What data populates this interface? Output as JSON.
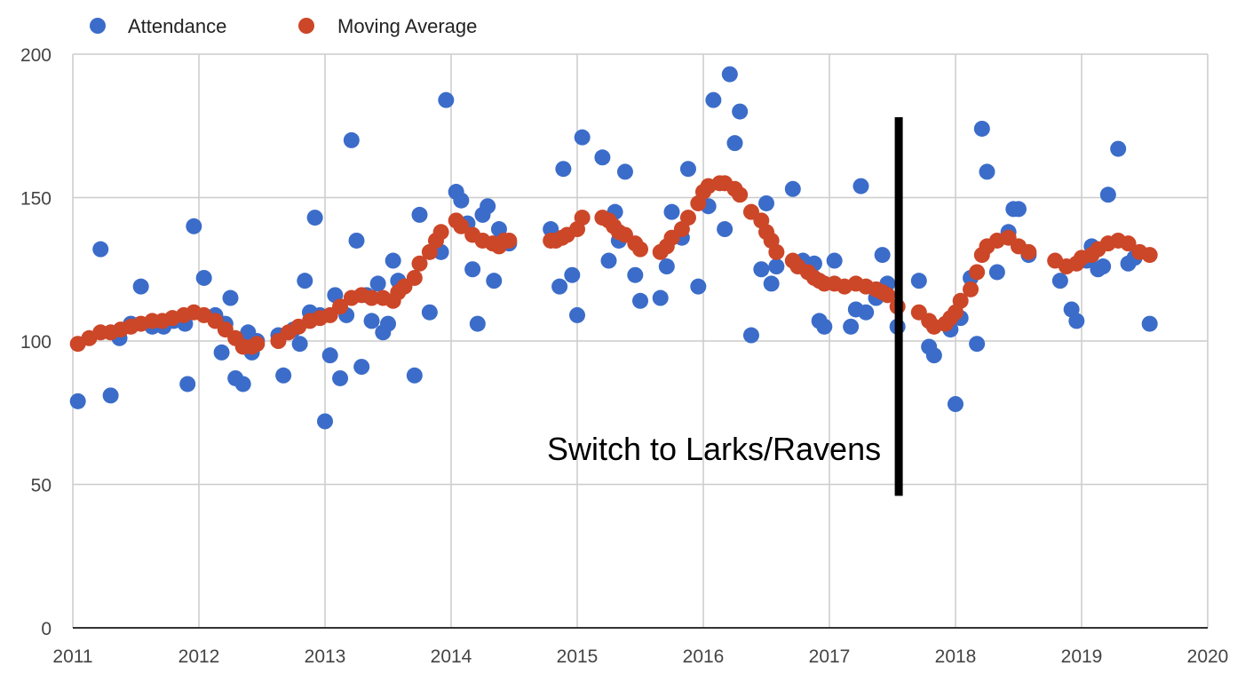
{
  "chart_data": {
    "type": "scatter",
    "title": "",
    "xlabel": "",
    "ylabel": "",
    "xlim": [
      2011,
      2020
    ],
    "ylim": [
      0,
      200
    ],
    "x_ticks": [
      "2011",
      "2012",
      "2013",
      "2014",
      "2015",
      "2016",
      "2017",
      "2018",
      "2019",
      "2020"
    ],
    "y_ticks": [
      "0",
      "50",
      "100",
      "150",
      "200"
    ],
    "grid": true,
    "legend_position": "top-left",
    "series": [
      {
        "name": "Attendance",
        "color": "#3b6cc9",
        "points": [
          [
            2011.04,
            79
          ],
          [
            2011.22,
            132
          ],
          [
            2011.3,
            81
          ],
          [
            2011.37,
            101
          ],
          [
            2011.46,
            106
          ],
          [
            2011.54,
            119
          ],
          [
            2011.63,
            105
          ],
          [
            2011.72,
            105
          ],
          [
            2011.8,
            107
          ],
          [
            2011.89,
            106
          ],
          [
            2011.91,
            85
          ],
          [
            2011.96,
            140
          ],
          [
            2012.04,
            122
          ],
          [
            2012.13,
            109
          ],
          [
            2012.18,
            96
          ],
          [
            2012.21,
            106
          ],
          [
            2012.25,
            115
          ],
          [
            2012.29,
            87
          ],
          [
            2012.35,
            85
          ],
          [
            2012.39,
            103
          ],
          [
            2012.42,
            96
          ],
          [
            2012.46,
            100
          ],
          [
            2012.63,
            102
          ],
          [
            2012.67,
            88
          ],
          [
            2012.75,
            104
          ],
          [
            2012.8,
            99
          ],
          [
            2012.84,
            121
          ],
          [
            2012.88,
            110
          ],
          [
            2012.92,
            143
          ],
          [
            2012.96,
            109
          ],
          [
            2013.0,
            72
          ],
          [
            2013.04,
            95
          ],
          [
            2013.08,
            116
          ],
          [
            2013.12,
            87
          ],
          [
            2013.17,
            109
          ],
          [
            2013.21,
            170
          ],
          [
            2013.25,
            135
          ],
          [
            2013.29,
            91
          ],
          [
            2013.33,
            116
          ],
          [
            2013.37,
            107
          ],
          [
            2013.42,
            120
          ],
          [
            2013.46,
            103
          ],
          [
            2013.5,
            106
          ],
          [
            2013.54,
            128
          ],
          [
            2013.58,
            121
          ],
          [
            2013.71,
            88
          ],
          [
            2013.75,
            144
          ],
          [
            2013.83,
            110
          ],
          [
            2013.92,
            131
          ],
          [
            2013.96,
            184
          ],
          [
            2014.04,
            152
          ],
          [
            2014.08,
            149
          ],
          [
            2014.13,
            141
          ],
          [
            2014.17,
            125
          ],
          [
            2014.21,
            106
          ],
          [
            2014.25,
            144
          ],
          [
            2014.29,
            147
          ],
          [
            2014.34,
            121
          ],
          [
            2014.38,
            139
          ],
          [
            2014.46,
            134
          ],
          [
            2014.79,
            139
          ],
          [
            2014.86,
            119
          ],
          [
            2014.89,
            160
          ],
          [
            2014.96,
            123
          ],
          [
            2015.0,
            109
          ],
          [
            2015.04,
            171
          ],
          [
            2015.2,
            164
          ],
          [
            2015.25,
            128
          ],
          [
            2015.3,
            145
          ],
          [
            2015.33,
            135
          ],
          [
            2015.38,
            159
          ],
          [
            2015.46,
            123
          ],
          [
            2015.5,
            114
          ],
          [
            2015.66,
            115
          ],
          [
            2015.71,
            126
          ],
          [
            2015.75,
            145
          ],
          [
            2015.83,
            136
          ],
          [
            2015.88,
            160
          ],
          [
            2015.96,
            119
          ],
          [
            2016.04,
            147
          ],
          [
            2016.08,
            184
          ],
          [
            2016.17,
            139
          ],
          [
            2016.21,
            193
          ],
          [
            2016.25,
            169
          ],
          [
            2016.29,
            180
          ],
          [
            2016.38,
            102
          ],
          [
            2016.46,
            125
          ],
          [
            2016.5,
            148
          ],
          [
            2016.54,
            120
          ],
          [
            2016.58,
            126
          ],
          [
            2016.71,
            153
          ],
          [
            2016.79,
            128
          ],
          [
            2016.88,
            127
          ],
          [
            2016.92,
            107
          ],
          [
            2016.96,
            105
          ],
          [
            2017.04,
            128
          ],
          [
            2017.17,
            105
          ],
          [
            2017.21,
            111
          ],
          [
            2017.25,
            154
          ],
          [
            2017.29,
            110
          ],
          [
            2017.37,
            115
          ],
          [
            2017.42,
            130
          ],
          [
            2017.46,
            120
          ],
          [
            2017.54,
            105
          ],
          [
            2017.71,
            121
          ],
          [
            2017.79,
            98
          ],
          [
            2017.83,
            95
          ],
          [
            2017.92,
            106
          ],
          [
            2017.96,
            104
          ],
          [
            2018.0,
            78
          ],
          [
            2018.04,
            108
          ],
          [
            2018.12,
            122
          ],
          [
            2018.17,
            99
          ],
          [
            2018.21,
            174
          ],
          [
            2018.25,
            159
          ],
          [
            2018.33,
            124
          ],
          [
            2018.42,
            138
          ],
          [
            2018.46,
            146
          ],
          [
            2018.5,
            146
          ],
          [
            2018.58,
            130
          ],
          [
            2018.83,
            121
          ],
          [
            2018.92,
            111
          ],
          [
            2018.96,
            107
          ],
          [
            2019.04,
            128
          ],
          [
            2019.08,
            133
          ],
          [
            2019.13,
            125
          ],
          [
            2019.17,
            126
          ],
          [
            2019.21,
            151
          ],
          [
            2019.29,
            167
          ],
          [
            2019.37,
            127
          ],
          [
            2019.42,
            129
          ],
          [
            2019.54,
            106
          ]
        ]
      },
      {
        "name": "Moving Average",
        "color": "#cc4628",
        "points": [
          [
            2011.04,
            99
          ],
          [
            2011.13,
            101
          ],
          [
            2011.22,
            103
          ],
          [
            2011.3,
            103
          ],
          [
            2011.38,
            104
          ],
          [
            2011.46,
            105
          ],
          [
            2011.54,
            106
          ],
          [
            2011.63,
            107
          ],
          [
            2011.71,
            107
          ],
          [
            2011.79,
            108
          ],
          [
            2011.88,
            109
          ],
          [
            2011.96,
            110
          ],
          [
            2012.04,
            109
          ],
          [
            2012.13,
            107
          ],
          [
            2012.21,
            104
          ],
          [
            2012.29,
            101
          ],
          [
            2012.35,
            98
          ],
          [
            2012.42,
            98
          ],
          [
            2012.46,
            99
          ],
          [
            2012.63,
            100
          ],
          [
            2012.71,
            103
          ],
          [
            2012.79,
            105
          ],
          [
            2012.88,
            107
          ],
          [
            2012.96,
            108
          ],
          [
            2013.04,
            109
          ],
          [
            2013.12,
            112
          ],
          [
            2013.21,
            115
          ],
          [
            2013.29,
            116
          ],
          [
            2013.37,
            115
          ],
          [
            2013.46,
            115
          ],
          [
            2013.54,
            114
          ],
          [
            2013.58,
            117
          ],
          [
            2013.63,
            119
          ],
          [
            2013.71,
            122
          ],
          [
            2013.75,
            127
          ],
          [
            2013.83,
            131
          ],
          [
            2013.88,
            135
          ],
          [
            2013.92,
            138
          ],
          [
            2014.04,
            142
          ],
          [
            2014.08,
            140
          ],
          [
            2014.17,
            137
          ],
          [
            2014.25,
            135
          ],
          [
            2014.33,
            134
          ],
          [
            2014.38,
            133
          ],
          [
            2014.42,
            135
          ],
          [
            2014.46,
            135
          ],
          [
            2014.79,
            135
          ],
          [
            2014.83,
            135
          ],
          [
            2014.88,
            136
          ],
          [
            2014.92,
            137
          ],
          [
            2015.0,
            139
          ],
          [
            2015.04,
            143
          ],
          [
            2015.2,
            143
          ],
          [
            2015.25,
            142
          ],
          [
            2015.29,
            140
          ],
          [
            2015.33,
            138
          ],
          [
            2015.38,
            137
          ],
          [
            2015.46,
            134
          ],
          [
            2015.5,
            132
          ],
          [
            2015.66,
            131
          ],
          [
            2015.71,
            133
          ],
          [
            2015.75,
            136
          ],
          [
            2015.83,
            139
          ],
          [
            2015.88,
            143
          ],
          [
            2015.96,
            148
          ],
          [
            2016.0,
            152
          ],
          [
            2016.04,
            154
          ],
          [
            2016.13,
            155
          ],
          [
            2016.17,
            155
          ],
          [
            2016.25,
            153
          ],
          [
            2016.29,
            151
          ],
          [
            2016.38,
            145
          ],
          [
            2016.46,
            142
          ],
          [
            2016.5,
            138
          ],
          [
            2016.54,
            135
          ],
          [
            2016.58,
            131
          ],
          [
            2016.71,
            128
          ],
          [
            2016.75,
            126
          ],
          [
            2016.83,
            124
          ],
          [
            2016.88,
            122
          ],
          [
            2016.92,
            121
          ],
          [
            2016.96,
            120
          ],
          [
            2017.04,
            120
          ],
          [
            2017.12,
            119
          ],
          [
            2017.21,
            120
          ],
          [
            2017.29,
            119
          ],
          [
            2017.37,
            118
          ],
          [
            2017.42,
            117
          ],
          [
            2017.46,
            116
          ],
          [
            2017.54,
            112
          ],
          [
            2017.71,
            110
          ],
          [
            2017.79,
            107
          ],
          [
            2017.83,
            105
          ],
          [
            2017.92,
            106
          ],
          [
            2017.96,
            108
          ],
          [
            2018.0,
            110
          ],
          [
            2018.04,
            114
          ],
          [
            2018.12,
            118
          ],
          [
            2018.17,
            124
          ],
          [
            2018.21,
            130
          ],
          [
            2018.25,
            133
          ],
          [
            2018.33,
            135
          ],
          [
            2018.42,
            136
          ],
          [
            2018.5,
            133
          ],
          [
            2018.58,
            131
          ],
          [
            2018.79,
            128
          ],
          [
            2018.88,
            126
          ],
          [
            2018.96,
            127
          ],
          [
            2019.0,
            129
          ],
          [
            2019.08,
            130
          ],
          [
            2019.13,
            132
          ],
          [
            2019.21,
            134
          ],
          [
            2019.29,
            135
          ],
          [
            2019.37,
            134
          ],
          [
            2019.46,
            131
          ],
          [
            2019.54,
            130
          ]
        ]
      }
    ],
    "annotations": [
      {
        "text": "Switch to Larks/Ravens",
        "x": 2017.55,
        "y_range": [
          46,
          178
        ]
      }
    ]
  }
}
